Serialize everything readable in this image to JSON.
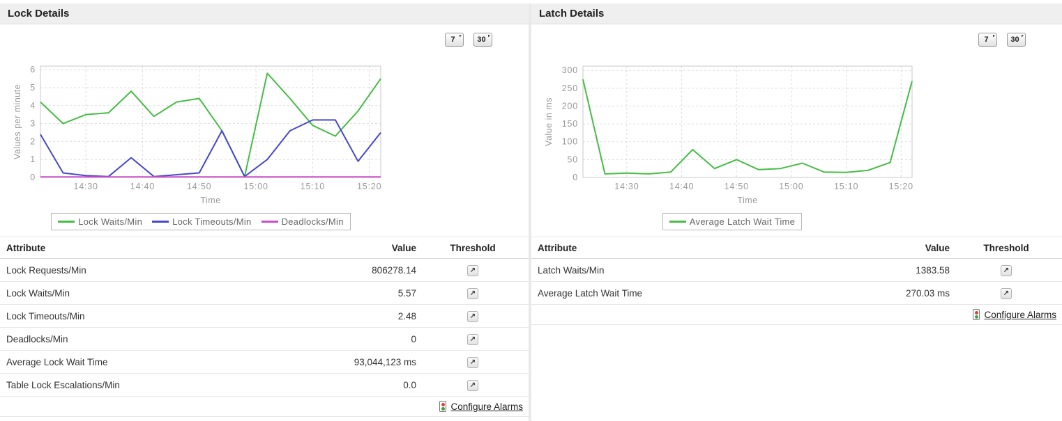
{
  "icons": {
    "threshold": "↗",
    "period_arrow": "▸"
  },
  "panels": [
    {
      "id": "lock",
      "title": "Lock Details",
      "period_buttons": [
        {
          "label": "7"
        },
        {
          "label": "30"
        }
      ],
      "legend": [
        {
          "label": "Lock Waits/Min",
          "color": "#45bd45"
        },
        {
          "label": "Lock Timeouts/Min",
          "color": "#4747cb"
        },
        {
          "label": "Deadlocks/Min",
          "color": "#cc4ccc"
        }
      ],
      "table": {
        "headers": {
          "attribute": "Attribute",
          "value": "Value",
          "threshold": "Threshold"
        },
        "rows": [
          {
            "attribute": "Lock Requests/Min",
            "value": "806278.14"
          },
          {
            "attribute": "Lock Waits/Min",
            "value": "5.57"
          },
          {
            "attribute": "Lock Timeouts/Min",
            "value": "2.48"
          },
          {
            "attribute": "Deadlocks/Min",
            "value": "0"
          },
          {
            "attribute": "Average Lock Wait Time",
            "value": "93,044,123 ms"
          },
          {
            "attribute": "Table Lock Escalations/Min",
            "value": "0.0"
          }
        ]
      },
      "configure_alarms": "Configure Alarms"
    },
    {
      "id": "latch",
      "title": "Latch Details",
      "period_buttons": [
        {
          "label": "7"
        },
        {
          "label": "30"
        }
      ],
      "legend": [
        {
          "label": "Average Latch Wait Time",
          "color": "#45bd45"
        }
      ],
      "table": {
        "headers": {
          "attribute": "Attribute",
          "value": "Value",
          "threshold": "Threshold"
        },
        "rows": [
          {
            "attribute": "Latch Waits/Min",
            "value": "1383.58"
          },
          {
            "attribute": "Average Latch Wait Time",
            "value": "270.03 ms"
          }
        ]
      },
      "configure_alarms": "Configure Alarms"
    }
  ],
  "chart_data": [
    {
      "id": "lock",
      "type": "line",
      "title": "",
      "xlabel": "Time",
      "ylabel": "Values per minute",
      "grid": true,
      "legend_position": "bottom",
      "x_minutes": [
        862,
        866,
        870,
        874,
        878,
        882,
        886,
        890,
        894,
        898,
        902,
        906,
        910,
        914,
        918,
        922
      ],
      "xtick_values": [
        870,
        880,
        890,
        900,
        910,
        920
      ],
      "xtick_labels": [
        "14:30",
        "14:40",
        "14:50",
        "15:00",
        "15:10",
        "15:20"
      ],
      "ylim": [
        0,
        6.2
      ],
      "yticks": [
        0,
        1,
        2,
        3,
        4,
        5,
        6
      ],
      "series": [
        {
          "name": "Lock Waits/Min",
          "color": "#45bd45",
          "values": [
            4.2,
            3.0,
            3.5,
            3.6,
            4.8,
            3.4,
            4.2,
            4.4,
            2.6,
            0.05,
            5.8,
            4.4,
            2.9,
            2.3,
            3.7,
            5.5
          ]
        },
        {
          "name": "Lock Timeouts/Min",
          "color": "#4747cb",
          "values": [
            2.4,
            0.25,
            0.1,
            0.05,
            1.1,
            0.05,
            0.15,
            0.25,
            2.6,
            0.05,
            1.0,
            2.6,
            3.2,
            3.2,
            0.9,
            2.5
          ]
        },
        {
          "name": "Deadlocks/Min",
          "color": "#cc4ccc",
          "values": [
            0.03,
            0.03,
            0.03,
            0.03,
            0.03,
            0.03,
            0.03,
            0.03,
            0.03,
            0.03,
            0.03,
            0.03,
            0.03,
            0.03,
            0.03,
            0.03
          ]
        }
      ]
    },
    {
      "id": "latch",
      "type": "line",
      "title": "",
      "xlabel": "Time",
      "ylabel": "Value in ms",
      "grid": true,
      "legend_position": "bottom",
      "x_minutes": [
        862,
        866,
        870,
        874,
        878,
        882,
        886,
        890,
        894,
        898,
        902,
        906,
        910,
        914,
        918,
        922
      ],
      "xtick_values": [
        870,
        880,
        890,
        900,
        910,
        920
      ],
      "xtick_labels": [
        "14:30",
        "14:40",
        "14:50",
        "15:00",
        "15:10",
        "15:20"
      ],
      "ylim": [
        0,
        312
      ],
      "yticks": [
        0,
        50,
        100,
        150,
        200,
        250,
        300
      ],
      "series": [
        {
          "name": "Average Latch Wait Time",
          "color": "#45bd45",
          "values": [
            275,
            10,
            12,
            10,
            15,
            78,
            25,
            50,
            22,
            25,
            40,
            15,
            14,
            20,
            42,
            270
          ]
        }
      ]
    }
  ]
}
